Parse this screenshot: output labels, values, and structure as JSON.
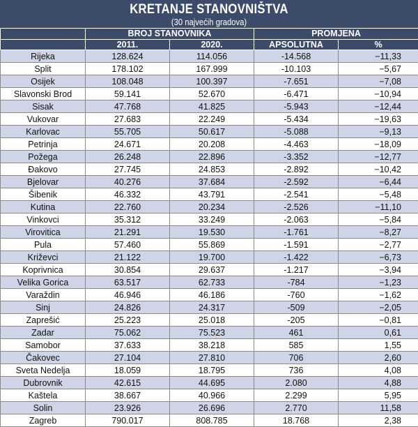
{
  "header": {
    "title": "KRETANJE STANOVNIŠTVA",
    "subtitle": "(30 najvećih gradova)",
    "group_population": "BROJ STANOVNIKA",
    "group_change": "PROMJENA",
    "col_2011": "2011.",
    "col_2020": "2020.",
    "col_abs": "APSOLUTNA",
    "col_pct": "%"
  },
  "colors": {
    "header_bg": "#3d4b6b",
    "row_stripe": "#cfd4e6",
    "row_plain": "#ffffff"
  },
  "chart_data": {
    "type": "table",
    "title": "KRETANJE STANOVNIŠTVA",
    "subtitle": "(30 najvećih gradova)",
    "columns": [
      "",
      "2011.",
      "2020.",
      "APSOLUTNA",
      "%"
    ],
    "rows": [
      {
        "city": "Rijeka",
        "y2011": "128.624",
        "y2020": "114.056",
        "abs": "-14.568",
        "pct": "−11,33"
      },
      {
        "city": "Split",
        "y2011": "178.102",
        "y2020": "167.999",
        "abs": "-10.103",
        "pct": "−5,67"
      },
      {
        "city": "Osijek",
        "y2011": "108.048",
        "y2020": "100.397",
        "abs": "-7.651",
        "pct": "−7,08"
      },
      {
        "city": "Slavonski Brod",
        "y2011": "59.141",
        "y2020": "52.670",
        "abs": "-6.471",
        "pct": "−10,94"
      },
      {
        "city": "Sisak",
        "y2011": "47.768",
        "y2020": "41.825",
        "abs": "-5.943",
        "pct": "−12,44"
      },
      {
        "city": "Vukovar",
        "y2011": "27.683",
        "y2020": "22.249",
        "abs": "-5.434",
        "pct": "−19,63"
      },
      {
        "city": "Karlovac",
        "y2011": "55.705",
        "y2020": "50.617",
        "abs": "-5.088",
        "pct": "−9,13"
      },
      {
        "city": "Petrinja",
        "y2011": "24.671",
        "y2020": "20.208",
        "abs": "-4.463",
        "pct": "−18,09"
      },
      {
        "city": "Požega",
        "y2011": "26.248",
        "y2020": "22.896",
        "abs": "-3.352",
        "pct": "−12,77"
      },
      {
        "city": "Đakovo",
        "y2011": "27.745",
        "y2020": "24.853",
        "abs": "-2.892",
        "pct": "−10,42"
      },
      {
        "city": "Bjelovar",
        "y2011": "40.276",
        "y2020": "37.684",
        "abs": "-2.592",
        "pct": "−6,44"
      },
      {
        "city": "Šibenik",
        "y2011": "46.332",
        "y2020": "43.791",
        "abs": "-2.541",
        "pct": "−5,48"
      },
      {
        "city": "Kutina",
        "y2011": "22.760",
        "y2020": "20.234",
        "abs": "-2.526",
        "pct": "−11,10"
      },
      {
        "city": "Vinkovci",
        "y2011": "35.312",
        "y2020": "33.249",
        "abs": "-2.063",
        "pct": "−5,84"
      },
      {
        "city": "Virovitica",
        "y2011": "21.291",
        "y2020": "19.530",
        "abs": "-1.761",
        "pct": "−8,27"
      },
      {
        "city": "Pula",
        "y2011": "57.460",
        "y2020": "55.869",
        "abs": "-1.591",
        "pct": "−2,77"
      },
      {
        "city": "Križevci",
        "y2011": "21.122",
        "y2020": "19.700",
        "abs": "-1.422",
        "pct": "−6,73"
      },
      {
        "city": "Koprivnica",
        "y2011": "30.854",
        "y2020": "29.637",
        "abs": "-1.217",
        "pct": "−3,94"
      },
      {
        "city": "Velika Gorica",
        "y2011": "63.517",
        "y2020": "62.733",
        "abs": "-784",
        "pct": "−1,23"
      },
      {
        "city": "Varaždin",
        "y2011": "46.946",
        "y2020": "46.186",
        "abs": "-760",
        "pct": "−1,62"
      },
      {
        "city": "Sinj",
        "y2011": "24.826",
        "y2020": "24.317",
        "abs": "-509",
        "pct": "−2,05"
      },
      {
        "city": "Zaprešić",
        "y2011": "25.223",
        "y2020": "25.018",
        "abs": "-205",
        "pct": "−0,81"
      },
      {
        "city": "Zadar",
        "y2011": "75.062",
        "y2020": "75.523",
        "abs": "461",
        "pct": "0,61"
      },
      {
        "city": "Samobor",
        "y2011": "37.633",
        "y2020": "38.218",
        "abs": "585",
        "pct": "1,55"
      },
      {
        "city": "Čakovec",
        "y2011": "27.104",
        "y2020": "27.810",
        "abs": "706",
        "pct": "2,60"
      },
      {
        "city": "Sveta Nedelja",
        "y2011": "18.059",
        "y2020": "18.795",
        "abs": "736",
        "pct": "4,08"
      },
      {
        "city": "Dubrovnik",
        "y2011": "42.615",
        "y2020": "44.695",
        "abs": "2.080",
        "pct": "4,88"
      },
      {
        "city": "Kaštela",
        "y2011": "38.667",
        "y2020": "40.966",
        "abs": "2.299",
        "pct": "5,95"
      },
      {
        "city": "Solin",
        "y2011": "23.926",
        "y2020": "26.696",
        "abs": "2.770",
        "pct": "11,58"
      },
      {
        "city": "Zagreb",
        "y2011": "790.017",
        "y2020": "808.785",
        "abs": "18.768",
        "pct": "2,38"
      }
    ]
  }
}
